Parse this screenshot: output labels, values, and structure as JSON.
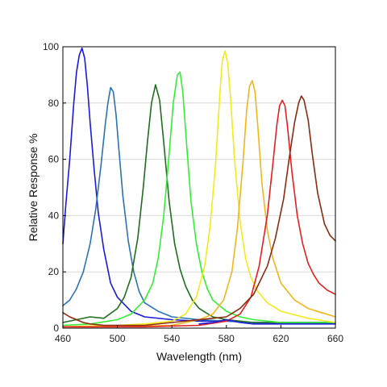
{
  "chart_data": {
    "type": "line",
    "title": "",
    "xlabel": "Wavelength (nm)",
    "ylabel": "Relative Response %",
    "xlim": [
      460,
      660
    ],
    "ylim": [
      0,
      100
    ],
    "xticks": [
      460,
      500,
      540,
      580,
      620,
      660
    ],
    "yticks": [
      0,
      20,
      40,
      60,
      80,
      100
    ],
    "grid": "horizontal",
    "legend": "none",
    "series": [
      {
        "color": "#1a1adb",
        "x": [
          460,
          462,
          465,
          468,
          470,
          472,
          474,
          476,
          478,
          480,
          483,
          486,
          490,
          495,
          500,
          510,
          520,
          540,
          560,
          580,
          600,
          620,
          640,
          660
        ],
        "y": [
          30,
          43,
          60,
          80,
          91,
          97,
          99.5,
          96,
          86,
          73,
          56,
          41,
          28,
          16,
          11,
          6,
          4,
          3,
          2.5,
          2.5,
          2,
          2,
          2,
          2
        ]
      },
      {
        "color": "#2b72b5",
        "x": [
          460,
          465,
          470,
          475,
          480,
          484,
          488,
          491,
          493,
          495,
          497,
          499,
          501,
          504,
          508,
          512,
          516,
          520,
          530,
          540,
          560,
          580,
          600,
          620,
          640,
          660
        ],
        "y": [
          8,
          10,
          14,
          20,
          30,
          42,
          58,
          72,
          80,
          85.5,
          84,
          76,
          64,
          47,
          31,
          20,
          13,
          9,
          6,
          4,
          3,
          2.5,
          2,
          2,
          2,
          2
        ]
      },
      {
        "color": "#1e6e1e",
        "x": [
          460,
          470,
          480,
          490,
          500,
          505,
          510,
          515,
          519,
          522,
          525,
          528,
          531,
          534,
          538,
          542,
          546,
          550,
          555,
          560,
          570,
          580,
          600,
          620,
          640,
          660
        ],
        "y": [
          2,
          3,
          4,
          3.5,
          7,
          11,
          18,
          32,
          50,
          66,
          80,
          86.5,
          81,
          66,
          45,
          30,
          21,
          15,
          10,
          7,
          4,
          3,
          2,
          2,
          2,
          2
        ]
      },
      {
        "color": "#33ee33",
        "x": [
          460,
          480,
          500,
          510,
          520,
          526,
          530,
          534,
          538,
          541,
          544,
          546,
          548,
          551,
          554,
          558,
          562,
          566,
          570,
          580,
          590,
          600,
          620,
          640,
          660
        ],
        "y": [
          1,
          1.5,
          3,
          5,
          10,
          16,
          25,
          40,
          62,
          80,
          90,
          91,
          84,
          64,
          45,
          30,
          20,
          14,
          10,
          6,
          4,
          3,
          2,
          2,
          2
        ]
      },
      {
        "color": "#f2ea1c",
        "x": [
          460,
          500,
          520,
          540,
          550,
          558,
          564,
          568,
          572,
          575,
          577,
          579,
          581,
          583,
          586,
          590,
          594,
          598,
          603,
          610,
          620,
          640,
          660
        ],
        "y": [
          0.5,
          1,
          1.5,
          2.5,
          5,
          11,
          22,
          36,
          58,
          82,
          95,
          98.5,
          94,
          82,
          60,
          38,
          25,
          18,
          13,
          9,
          6,
          3.5,
          2
        ]
      },
      {
        "color": "#f2b51c",
        "x": [
          460,
          500,
          540,
          560,
          570,
          578,
          584,
          588,
          592,
          595,
          597,
          599,
          601,
          603,
          606,
          610,
          614,
          620,
          630,
          640,
          650,
          660
        ],
        "y": [
          0.5,
          0.5,
          1,
          3,
          5,
          10,
          20,
          35,
          58,
          78,
          86,
          88,
          84,
          72,
          52,
          35,
          25,
          16,
          10,
          7,
          5.5,
          4
        ]
      },
      {
        "color": "#e61e1e",
        "x": [
          460,
          520,
          560,
          580,
          590,
          598,
          604,
          610,
          614,
          617,
          619,
          621,
          623,
          625,
          628,
          632,
          636,
          640,
          644,
          648,
          654,
          660
        ],
        "y": [
          0.5,
          0.5,
          1,
          2.5,
          5,
          11,
          22,
          40,
          58,
          72,
          79,
          81,
          79,
          71,
          56,
          40,
          30,
          23,
          19,
          16,
          13.5,
          12
        ]
      },
      {
        "color": "#8b2a10",
        "x": [
          460,
          465,
          470,
          475,
          480,
          490,
          500,
          520,
          540,
          560,
          580,
          590,
          600,
          610,
          616,
          622,
          626,
          630,
          633,
          635,
          637,
          640,
          643,
          647,
          652,
          656,
          660
        ],
        "y": [
          5.5,
          4,
          3,
          2,
          1.5,
          1,
          1,
          1,
          2,
          3,
          4,
          7,
          12,
          22,
          32,
          46,
          60,
          73,
          80,
          82.5,
          81,
          74,
          62,
          48,
          37,
          33,
          31
        ]
      },
      {
        "color": "#1a1adb",
        "x": [
          560,
          570,
          580,
          590,
          600,
          620,
          640,
          660
        ],
        "y": [
          1.5,
          2,
          3,
          2,
          1.5,
          1.5,
          1.5,
          1.5
        ]
      }
    ]
  }
}
